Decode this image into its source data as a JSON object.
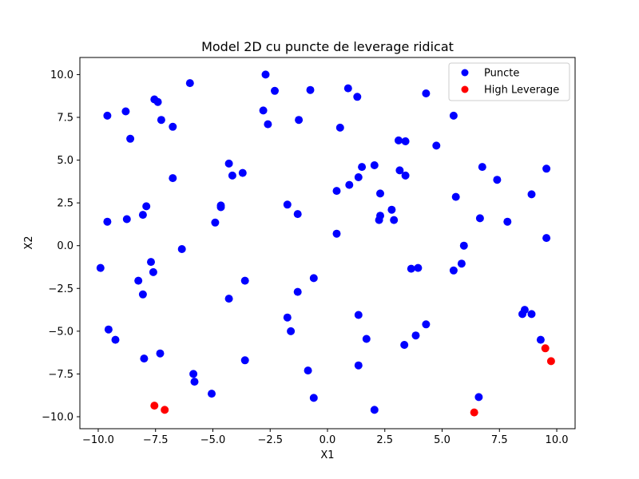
{
  "chart_data": {
    "type": "scatter",
    "title": "Model 2D cu puncte de leverage ridicat",
    "xlabel": "X1",
    "ylabel": "X2",
    "xlim": [
      -10.8,
      10.8
    ],
    "ylim": [
      -10.7,
      11.0
    ],
    "x_ticks": [
      -10.0,
      -7.5,
      -5.0,
      -2.5,
      0.0,
      2.5,
      5.0,
      7.5,
      10.0
    ],
    "x_tick_labels": [
      "−10.0",
      "−7.5",
      "−5.0",
      "−2.5",
      "0.0",
      "2.5",
      "5.0",
      "7.5",
      "10.0"
    ],
    "y_ticks": [
      -10.0,
      -7.5,
      -5.0,
      -2.5,
      0.0,
      2.5,
      5.0,
      7.5,
      10.0
    ],
    "y_tick_labels": [
      "−10.0",
      "−7.5",
      "−5.0",
      "−2.5",
      "0.0",
      "2.5",
      "5.0",
      "7.5",
      "10.0"
    ],
    "grid": false,
    "legend_position": "top-right",
    "series": [
      {
        "name": "Puncte",
        "color": "#0000ff",
        "points": [
          [
            -2.7,
            10.0
          ],
          [
            -6.0,
            9.5
          ],
          [
            -2.3,
            9.05
          ],
          [
            -0.75,
            9.1
          ],
          [
            0.9,
            9.2
          ],
          [
            1.3,
            8.7
          ],
          [
            4.3,
            8.9
          ],
          [
            -7.55,
            8.55
          ],
          [
            -7.4,
            8.4
          ],
          [
            -8.8,
            7.85
          ],
          [
            -9.6,
            7.6
          ],
          [
            -7.25,
            7.35
          ],
          [
            -6.75,
            6.95
          ],
          [
            -2.8,
            7.9
          ],
          [
            -2.6,
            7.1
          ],
          [
            -1.25,
            7.35
          ],
          [
            0.55,
            6.9
          ],
          [
            5.5,
            7.6
          ],
          [
            -8.6,
            6.25
          ],
          [
            3.1,
            6.15
          ],
          [
            3.4,
            6.1
          ],
          [
            4.75,
            5.85
          ],
          [
            -4.3,
            4.8
          ],
          [
            -4.15,
            4.1
          ],
          [
            -3.7,
            4.25
          ],
          [
            1.5,
            4.6
          ],
          [
            2.05,
            4.7
          ],
          [
            3.15,
            4.4
          ],
          [
            1.35,
            4.0
          ],
          [
            3.4,
            4.1
          ],
          [
            0.95,
            3.55
          ],
          [
            0.4,
            3.2
          ],
          [
            2.3,
            3.05
          ],
          [
            6.75,
            4.6
          ],
          [
            7.4,
            3.85
          ],
          [
            9.55,
            4.5
          ],
          [
            -6.75,
            3.95
          ],
          [
            8.9,
            3.0
          ],
          [
            5.6,
            2.85
          ],
          [
            -7.9,
            2.3
          ],
          [
            -4.65,
            2.35
          ],
          [
            -4.65,
            2.25
          ],
          [
            -1.75,
            2.4
          ],
          [
            -1.3,
            1.85
          ],
          [
            2.8,
            2.1
          ],
          [
            2.3,
            1.75
          ],
          [
            2.25,
            1.5
          ],
          [
            2.9,
            1.5
          ],
          [
            -8.05,
            1.8
          ],
          [
            -9.6,
            1.4
          ],
          [
            -8.75,
            1.55
          ],
          [
            -4.9,
            1.35
          ],
          [
            6.65,
            1.6
          ],
          [
            7.85,
            1.4
          ],
          [
            0.4,
            0.7
          ],
          [
            9.55,
            0.45
          ],
          [
            -6.35,
            -0.2
          ],
          [
            5.95,
            0.0
          ],
          [
            -9.9,
            -1.3
          ],
          [
            -7.7,
            -0.95
          ],
          [
            -7.6,
            -1.55
          ],
          [
            -8.25,
            -2.05
          ],
          [
            -3.6,
            -2.05
          ],
          [
            -1.3,
            -2.7
          ],
          [
            -0.6,
            -1.9
          ],
          [
            5.85,
            -1.05
          ],
          [
            5.5,
            -1.45
          ],
          [
            3.65,
            -1.35
          ],
          [
            3.95,
            -1.3
          ],
          [
            -8.05,
            -2.85
          ],
          [
            -4.3,
            -3.1
          ],
          [
            -1.75,
            -4.2
          ],
          [
            -1.6,
            -5.0
          ],
          [
            1.35,
            -4.05
          ],
          [
            4.3,
            -4.6
          ],
          [
            3.85,
            -5.25
          ],
          [
            1.7,
            -5.45
          ],
          [
            3.35,
            -5.8
          ],
          [
            8.6,
            -3.75
          ],
          [
            8.5,
            -4.0
          ],
          [
            8.9,
            -4.0
          ],
          [
            -9.55,
            -4.9
          ],
          [
            -9.25,
            -5.5
          ],
          [
            9.3,
            -5.5
          ],
          [
            1.35,
            -7.0
          ],
          [
            -7.3,
            -6.3
          ],
          [
            -8.0,
            -6.6
          ],
          [
            -3.6,
            -6.7
          ],
          [
            -5.85,
            -7.5
          ],
          [
            -5.8,
            -7.95
          ],
          [
            -0.85,
            -7.3
          ],
          [
            -5.05,
            -8.65
          ],
          [
            -0.6,
            -8.9
          ],
          [
            6.6,
            -8.85
          ],
          [
            2.05,
            -9.6
          ]
        ]
      },
      {
        "name": "High Leverage",
        "color": "#ff0000",
        "points": [
          [
            -7.55,
            -9.35
          ],
          [
            -7.1,
            -9.6
          ],
          [
            6.4,
            -9.75
          ],
          [
            9.5,
            -6.0
          ],
          [
            9.75,
            -6.75
          ]
        ]
      }
    ]
  }
}
